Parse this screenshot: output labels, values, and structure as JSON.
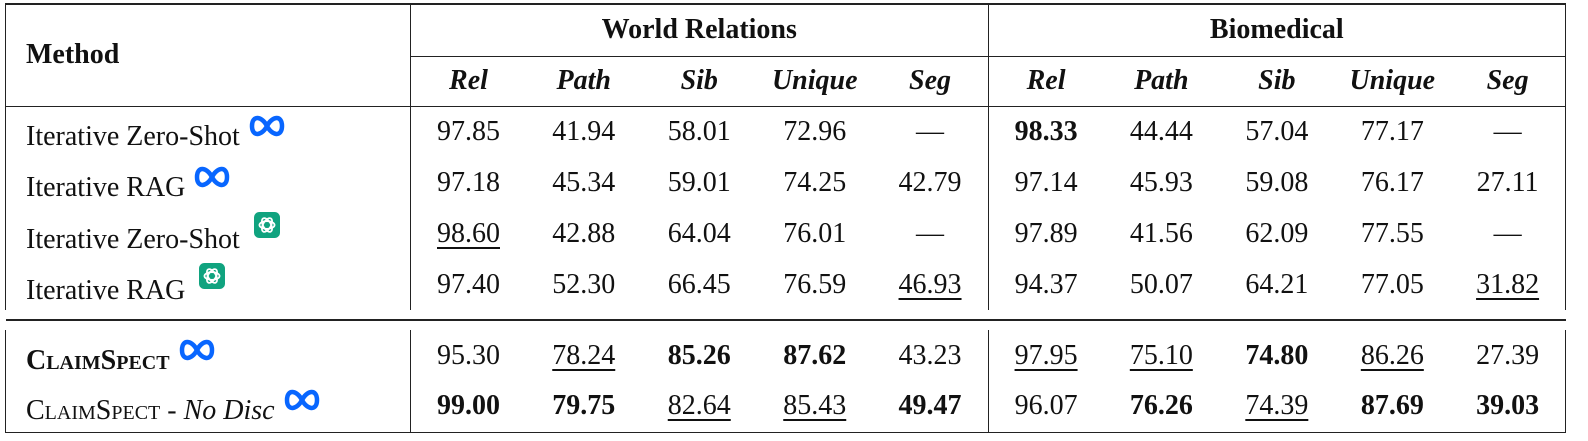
{
  "table": {
    "header": {
      "method": "Method",
      "groups": [
        {
          "name": "World Relations",
          "columns": [
            "Rel",
            "Path",
            "Sib",
            "Unique",
            "Seg"
          ]
        },
        {
          "name": "Biomedical",
          "columns": [
            "Rel",
            "Path",
            "Sib",
            "Unique",
            "Seg"
          ]
        }
      ]
    },
    "rows": [
      {
        "method": [
          "Iterative Zero-Shot"
        ],
        "cells": [
          "97.85",
          "41.94",
          "58.01",
          "72.96",
          "—",
          "98.33",
          "44.44",
          "57.04",
          "77.17",
          "—"
        ]
      },
      {
        "method": [
          "Iterative RAG"
        ],
        "cells": [
          "97.18",
          "45.34",
          "59.01",
          "74.25",
          "42.79",
          "97.14",
          "45.93",
          "59.08",
          "76.17",
          "27.11"
        ]
      },
      {
        "method": [
          "Iterative Zero-Shot"
        ],
        "cells": [
          "98.60",
          "42.88",
          "64.04",
          "76.01",
          "—",
          "97.89",
          "41.56",
          "62.09",
          "77.55",
          "—"
        ]
      },
      {
        "method": [
          "Iterative RAG"
        ],
        "cells": [
          "97.40",
          "52.30",
          "66.45",
          "76.59",
          "46.93",
          "94.37",
          "50.07",
          "64.21",
          "77.05",
          "31.82"
        ]
      },
      {
        "method": [
          "ClaimSpect"
        ],
        "cells": [
          "95.30",
          "78.24",
          "85.26",
          "87.62",
          "43.23",
          "97.95",
          "75.10",
          "74.80",
          "86.26",
          "27.39"
        ]
      },
      {
        "method": [
          "ClaimSpect",
          "-",
          "No Disc"
        ],
        "cells": [
          "99.00",
          "79.75",
          "82.64",
          "85.43",
          "49.47",
          "96.07",
          "76.26",
          "74.39",
          "87.69",
          "39.03"
        ]
      }
    ]
  }
}
